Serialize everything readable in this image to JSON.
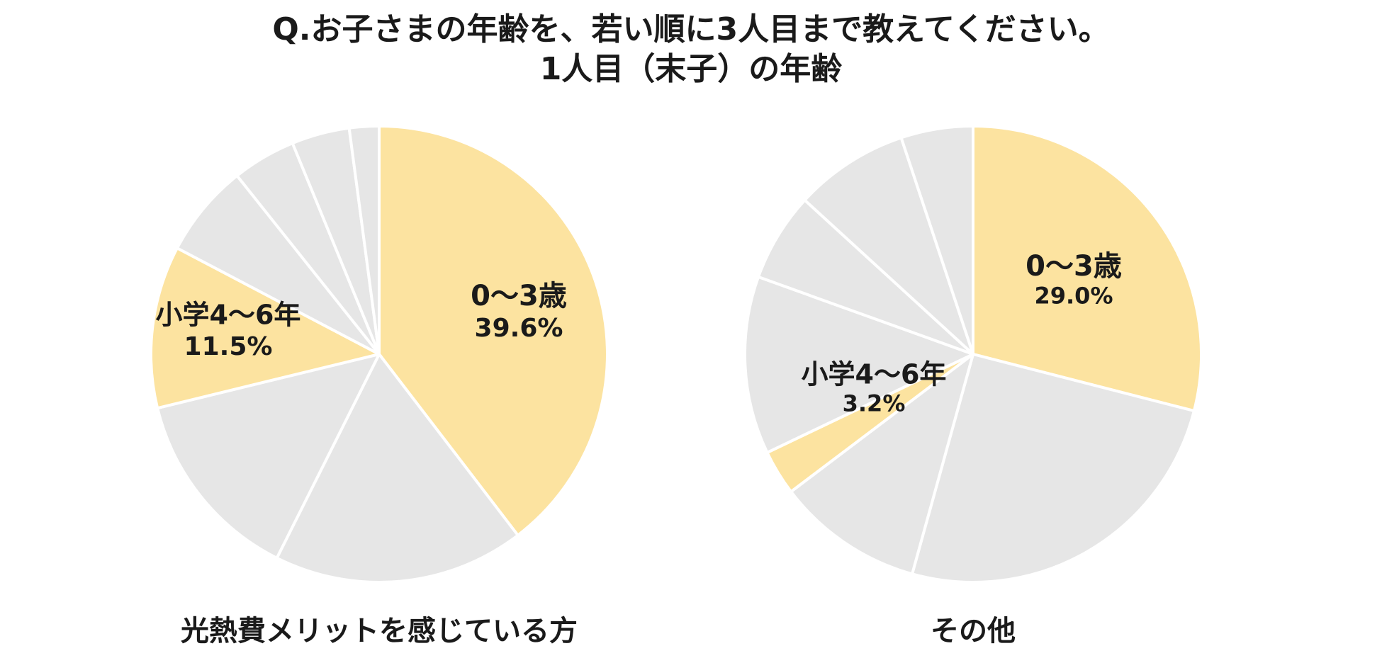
{
  "title": {
    "line1": "Q.お子さまの年齢を、若い順に3人目まで教えてください。",
    "line2": "1人目（末子）の年齢"
  },
  "colors": {
    "highlight": "#fce3a0",
    "other": "#e6e6e6",
    "separator": "#ffffff",
    "text": "#1a1a1a"
  },
  "chart_data": [
    {
      "type": "pie",
      "title": "光熱費メリットを感じている方",
      "start_angle_deg": 0,
      "direction": "clockwise",
      "slices": [
        {
          "value": 39.6,
          "label": "0〜3歳",
          "value_label": "39.6%",
          "highlight": true
        },
        {
          "value": 17.8,
          "label": "",
          "value_label": "",
          "highlight": false
        },
        {
          "value": 13.8,
          "label": "",
          "value_label": "",
          "highlight": false
        },
        {
          "value": 11.5,
          "label": "小学4〜6年",
          "value_label": "11.5%",
          "highlight": true
        },
        {
          "value": 6.6,
          "label": "",
          "value_label": "",
          "highlight": false
        },
        {
          "value": 4.5,
          "label": "",
          "value_label": "",
          "highlight": false
        },
        {
          "value": 4.1,
          "label": "",
          "value_label": "",
          "highlight": false
        },
        {
          "value": 2.1,
          "label": "",
          "value_label": "",
          "highlight": false
        }
      ]
    },
    {
      "type": "pie",
      "title": "その他",
      "start_angle_deg": 0,
      "direction": "clockwise",
      "slices": [
        {
          "value": 29.0,
          "label": "0〜3歳",
          "value_label": "29.0%",
          "highlight": true
        },
        {
          "value": 25.3,
          "label": "",
          "value_label": "",
          "highlight": false
        },
        {
          "value": 10.4,
          "label": "",
          "value_label": "",
          "highlight": false
        },
        {
          "value": 3.2,
          "label": "小学4〜6年",
          "value_label": "3.2%",
          "highlight": true
        },
        {
          "value": 12.6,
          "label": "",
          "value_label": "",
          "highlight": false
        },
        {
          "value": 6.3,
          "label": "",
          "value_label": "",
          "highlight": false
        },
        {
          "value": 8.1,
          "label": "",
          "value_label": "",
          "highlight": false
        },
        {
          "value": 5.1,
          "label": "",
          "value_label": "",
          "highlight": false
        }
      ]
    }
  ]
}
